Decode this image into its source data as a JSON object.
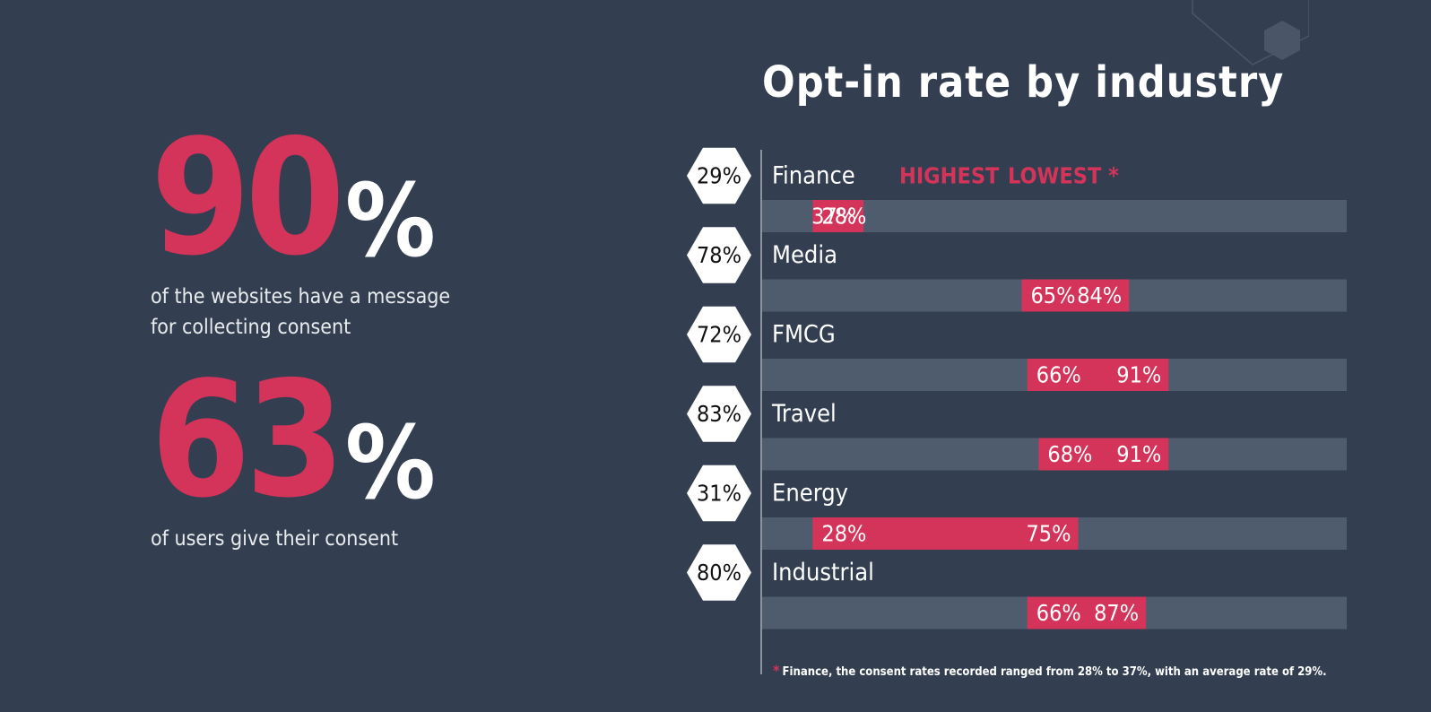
{
  "stats": [
    {
      "value": "90",
      "unit": "%",
      "caption_line1": "of the websites have a message",
      "caption_line2": "for collecting consent"
    },
    {
      "value": "63",
      "unit": "%",
      "caption_line1": "of users give their consent",
      "caption_line2": ""
    }
  ],
  "colors": {
    "background": "#333f50",
    "accent": "#d4335a",
    "track": "#4f5c6e"
  },
  "chart_data": {
    "type": "range-bar",
    "title": "Opt-in rate by industry",
    "legend": {
      "highest": "HIGHEST",
      "lowest": "LOWEST *",
      "placement": "top"
    },
    "xlim": [
      0,
      100
    ],
    "categories": [
      "Finance",
      "Media",
      "FMCG",
      "Travel",
      "Energy",
      "Industrial"
    ],
    "averages": [
      "29%",
      "78%",
      "72%",
      "83%",
      "31%",
      "80%"
    ],
    "low": [
      28,
      65,
      66,
      68,
      28,
      66
    ],
    "high": [
      37,
      84,
      91,
      91,
      75,
      87
    ],
    "low_labels": [
      "28%",
      "65%",
      "66%",
      "68%",
      "28%",
      "66%"
    ],
    "high_labels": [
      "37%",
      "84%",
      "91%",
      "91%",
      "75%",
      "87%"
    ]
  },
  "footnote": {
    "marker": "*",
    "text": "Finance, the consent rates recorded ranged from 28% to 37%, with an average rate of 29%."
  }
}
